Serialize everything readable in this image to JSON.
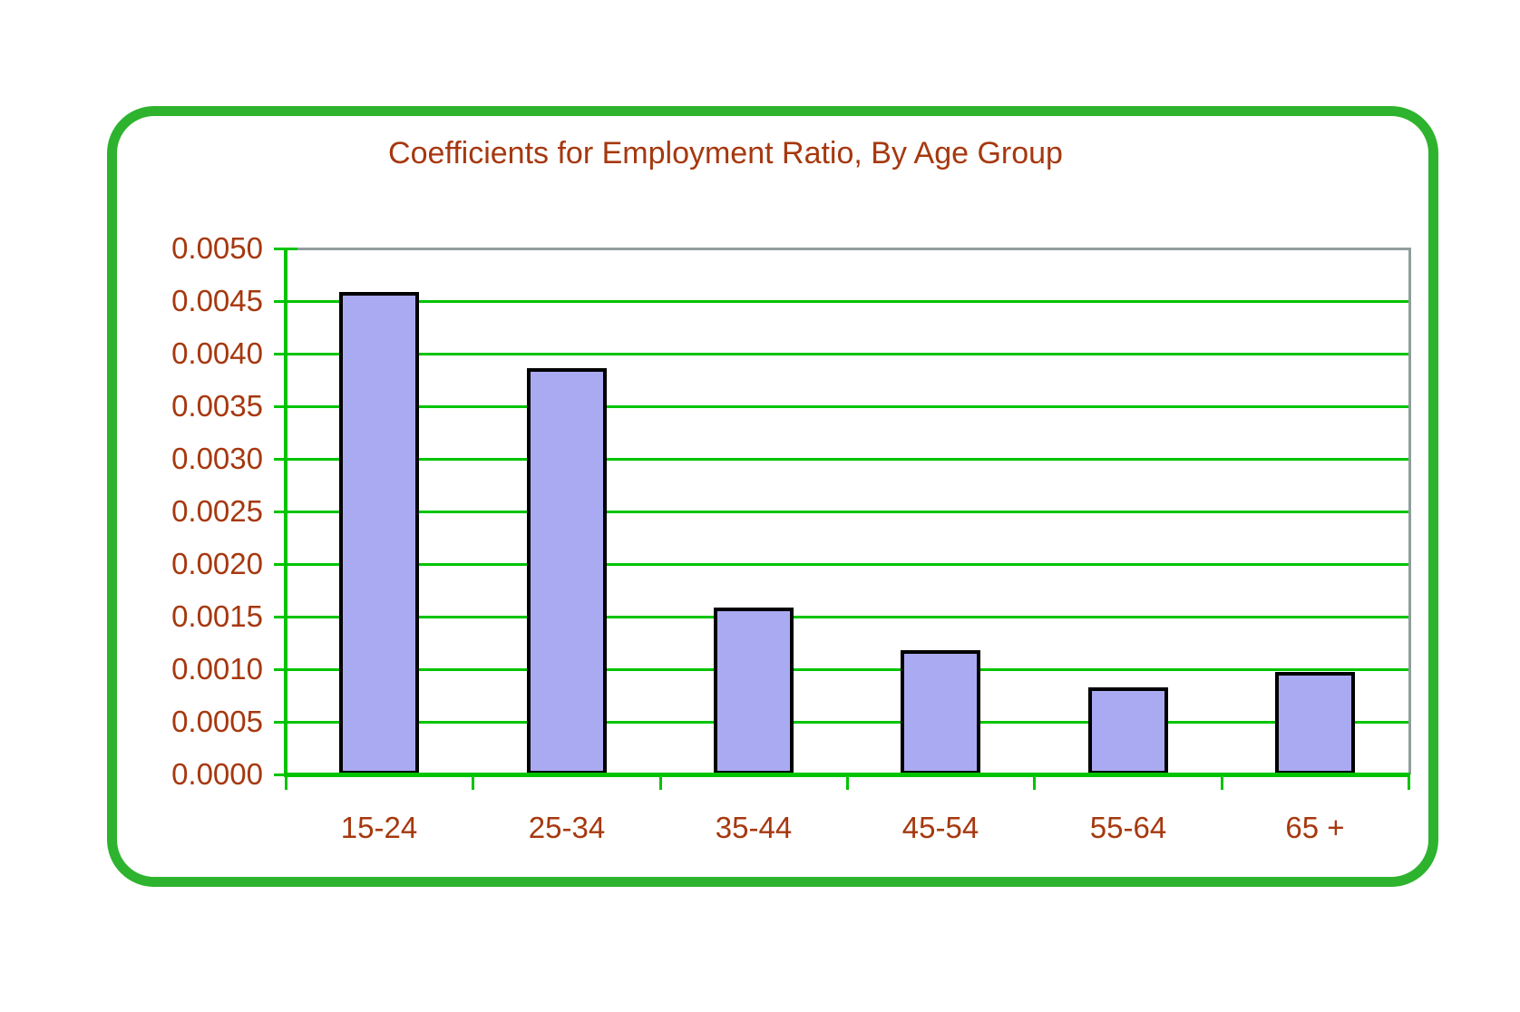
{
  "title": "Coefficients for Employment Ratio, By Age Group",
  "colors": {
    "frame_green": "#2db32d",
    "grid_green": "#00c400",
    "plot_border_gray": "#909d9d",
    "bar_fill": "#aaaaf2",
    "bar_border": "#000000",
    "text_dark_red": "#a6380f",
    "background": "#ffffff"
  },
  "chart_data": {
    "type": "bar",
    "title": "Coefficients for Employment Ratio, By Age Group",
    "categories": [
      "15-24",
      "25-34",
      "35-44",
      "45-54",
      "55-64",
      "65 +"
    ],
    "values": [
      0.00459,
      0.00386,
      0.00159,
      0.00118,
      0.00083,
      0.00097
    ],
    "xlabel": "",
    "ylabel": "",
    "ylim": [
      0,
      0.005
    ],
    "ytick_step": 0.0005,
    "ytick_labels": [
      "0.0000",
      "0.0005",
      "0.0010",
      "0.0015",
      "0.0020",
      "0.0025",
      "0.0030",
      "0.0035",
      "0.0040",
      "0.0045",
      "0.0050"
    ],
    "grid": true,
    "legend": false
  }
}
